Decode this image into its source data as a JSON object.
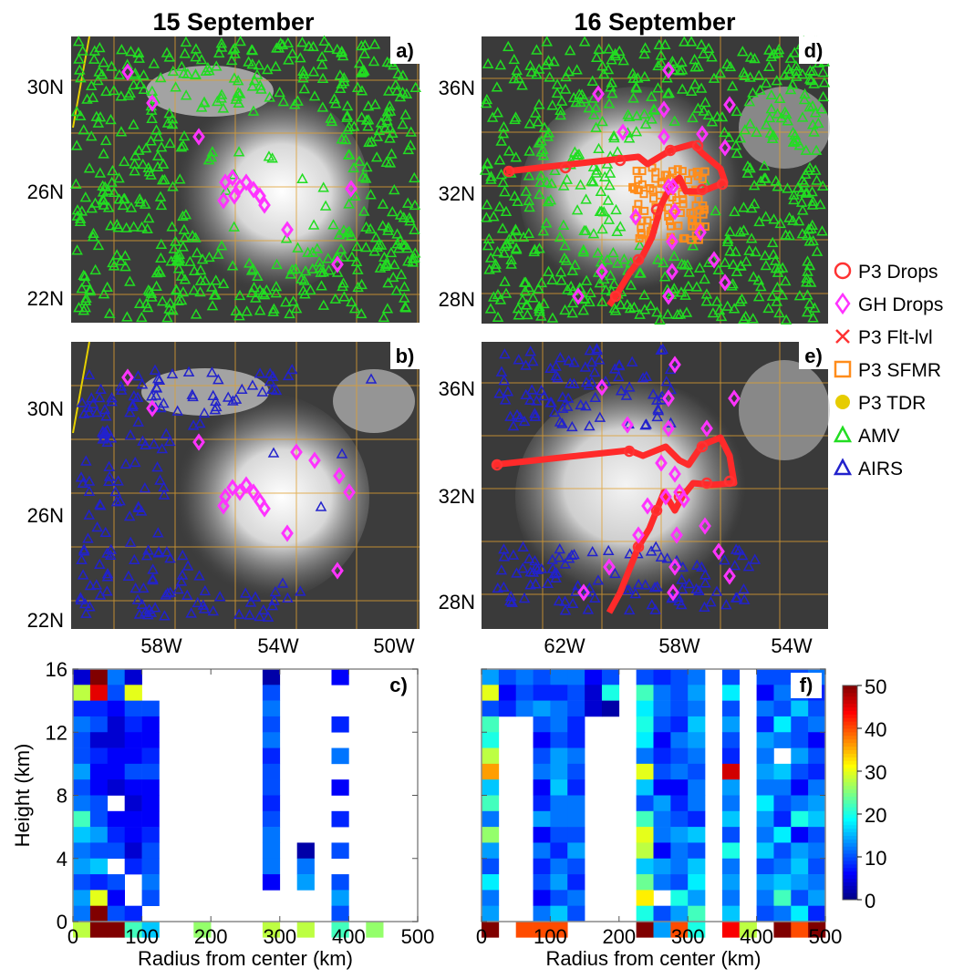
{
  "columns": [
    {
      "id": "col-left",
      "title": "15 September"
    },
    {
      "id": "col-right",
      "title": "16 September"
    }
  ],
  "legend": [
    {
      "id": "p3-drops",
      "label": "P3 Drops",
      "marker": "circle-open",
      "color": "#ff3333"
    },
    {
      "id": "gh-drops",
      "label": "GH Drops",
      "marker": "diamond-open",
      "color": "#ff33ff"
    },
    {
      "id": "p3-flt-lvl",
      "label": "P3 Flt-lvl",
      "marker": "cross",
      "color": "#ff3333"
    },
    {
      "id": "p3-sfmr",
      "label": "P3 SFMR",
      "marker": "square-open",
      "color": "#ff8c1a"
    },
    {
      "id": "p3-tdr",
      "label": "P3 TDR",
      "marker": "circle-filled",
      "color": "#e6cc00"
    },
    {
      "id": "amv",
      "label": "AMV",
      "marker": "triangle-open",
      "color": "#22dd22"
    },
    {
      "id": "airs",
      "label": "AIRS",
      "marker": "triangle-open",
      "color": "#2222cc"
    }
  ],
  "maps": [
    {
      "panel": "a)",
      "lat_ticks": [
        "30N",
        "26N",
        "22N"
      ],
      "lon_ticks": [],
      "observations": [
        "AMV",
        "GH Drops"
      ]
    },
    {
      "panel": "b)",
      "lat_ticks": [
        "30N",
        "26N",
        "22N"
      ],
      "lon_ticks": [
        "58W",
        "54W",
        "50W"
      ],
      "observations": [
        "AIRS",
        "GH Drops"
      ]
    },
    {
      "panel": "d)",
      "lat_ticks": [
        "36N",
        "32N",
        "28N"
      ],
      "lon_ticks": [],
      "observations": [
        "AMV",
        "GH Drops",
        "P3 Drops",
        "P3 Flt-lvl",
        "P3 SFMR"
      ]
    },
    {
      "panel": "e)",
      "lat_ticks": [
        "36N",
        "32N",
        "28N"
      ],
      "lon_ticks": [
        "62W",
        "58W",
        "54W"
      ],
      "observations": [
        "AIRS",
        "GH Drops",
        "P3 Drops",
        "P3 Flt-lvl"
      ]
    }
  ],
  "chart_data": [
    {
      "type": "heatmap",
      "panel": "c)",
      "xlabel": "Radius from center (km)",
      "ylabel": "Height (km)",
      "xlim": [
        0,
        500
      ],
      "ylim": [
        0,
        16
      ],
      "xticks": [
        "0",
        "100",
        "200",
        "300",
        "400",
        "500"
      ],
      "yticks": [
        "0",
        "4",
        "8",
        "12",
        "16"
      ],
      "x_bin_km": 25,
      "y_bin_km": 1,
      "rows_top_to_bottom": [
        [
          4,
          50,
          12,
          4,
          null,
          null,
          null,
          null,
          null,
          null,
          null,
          2,
          null,
          null,
          null,
          6,
          null,
          null,
          null,
          null
        ],
        [
          28,
          45,
          10,
          30,
          null,
          null,
          null,
          null,
          null,
          null,
          null,
          10,
          null,
          null,
          null,
          null,
          null,
          null,
          null,
          null
        ],
        [
          8,
          8,
          6,
          10,
          10,
          null,
          null,
          null,
          null,
          null,
          null,
          12,
          null,
          null,
          null,
          null,
          null,
          null,
          null,
          null
        ],
        [
          12,
          10,
          4,
          8,
          6,
          null,
          null,
          null,
          null,
          null,
          null,
          10,
          null,
          null,
          null,
          8,
          null,
          null,
          null,
          null
        ],
        [
          10,
          4,
          4,
          6,
          6,
          null,
          null,
          null,
          null,
          null,
          null,
          12,
          null,
          null,
          null,
          null,
          null,
          null,
          null,
          null
        ],
        [
          10,
          8,
          6,
          6,
          8,
          null,
          null,
          null,
          null,
          null,
          null,
          8,
          null,
          null,
          null,
          12,
          null,
          null,
          null,
          null
        ],
        [
          14,
          6,
          6,
          10,
          10,
          null,
          null,
          null,
          null,
          null,
          null,
          10,
          null,
          null,
          null,
          null,
          null,
          null,
          null,
          null
        ],
        [
          10,
          6,
          4,
          6,
          6,
          null,
          null,
          null,
          null,
          null,
          null,
          10,
          null,
          null,
          null,
          6,
          null,
          null,
          null,
          null
        ],
        [
          12,
          10,
          null,
          4,
          6,
          null,
          null,
          null,
          null,
          null,
          null,
          8,
          null,
          null,
          null,
          null,
          null,
          null,
          null,
          null
        ],
        [
          22,
          10,
          6,
          6,
          6,
          null,
          null,
          null,
          null,
          null,
          null,
          10,
          null,
          null,
          null,
          8,
          null,
          null,
          null,
          null
        ],
        [
          16,
          14,
          8,
          6,
          8,
          null,
          null,
          null,
          null,
          null,
          null,
          12,
          null,
          null,
          null,
          null,
          null,
          null,
          null,
          null
        ],
        [
          12,
          10,
          10,
          4,
          10,
          null,
          null,
          null,
          null,
          null,
          null,
          12,
          null,
          2,
          null,
          10,
          null,
          null,
          null,
          null
        ],
        [
          14,
          16,
          null,
          8,
          10,
          null,
          null,
          null,
          null,
          null,
          null,
          12,
          null,
          12,
          null,
          null,
          null,
          null,
          null,
          null
        ],
        [
          10,
          8,
          10,
          null,
          12,
          null,
          null,
          null,
          null,
          null,
          null,
          6,
          null,
          14,
          null,
          10,
          null,
          null,
          null,
          null
        ],
        [
          14,
          30,
          6,
          null,
          10,
          null,
          null,
          null,
          null,
          null,
          null,
          null,
          null,
          null,
          null,
          14,
          null,
          null,
          null,
          null
        ],
        [
          12,
          50,
          10,
          8,
          null,
          null,
          null,
          null,
          null,
          null,
          null,
          null,
          null,
          null,
          null,
          10,
          null,
          null,
          null,
          null
        ],
        [
          28,
          54,
          54,
          22,
          16,
          null,
          null,
          26,
          null,
          null,
          null,
          28,
          null,
          28,
          null,
          22,
          null,
          26,
          null,
          null
        ]
      ]
    },
    {
      "type": "heatmap",
      "panel": "f)",
      "xlabel": "Radius from center (km)",
      "ylabel": "",
      "xlim": [
        0,
        500
      ],
      "ylim": [
        0,
        16
      ],
      "xticks": [
        "0",
        "100",
        "200",
        "300",
        "400",
        "500"
      ],
      "yticks": [],
      "x_bin_km": 25,
      "y_bin_km": 1,
      "colorbar": {
        "min": 0,
        "max": 50,
        "ticks": [
          "0",
          "10",
          "20",
          "30",
          "40",
          "50"
        ]
      },
      "rows_top_to_bottom": [
        [
          14,
          10,
          12,
          10,
          12,
          12,
          6,
          10,
          null,
          10,
          8,
          10,
          12,
          null,
          10,
          null,
          10,
          10,
          10,
          12
        ],
        [
          30,
          6,
          10,
          8,
          8,
          10,
          4,
          20,
          null,
          22,
          12,
          10,
          14,
          null,
          18,
          null,
          6,
          12,
          10,
          8
        ],
        [
          10,
          8,
          12,
          14,
          12,
          10,
          4,
          2,
          null,
          18,
          12,
          10,
          12,
          null,
          10,
          null,
          12,
          10,
          16,
          10
        ],
        [
          22,
          null,
          null,
          10,
          12,
          8,
          null,
          null,
          null,
          20,
          10,
          8,
          16,
          null,
          14,
          null,
          8,
          18,
          10,
          12
        ],
        [
          20,
          null,
          null,
          6,
          10,
          8,
          null,
          null,
          null,
          18,
          6,
          12,
          14,
          null,
          10,
          null,
          14,
          12,
          10,
          6
        ],
        [
          28,
          null,
          null,
          10,
          14,
          12,
          null,
          null,
          null,
          12,
          8,
          10,
          12,
          null,
          8,
          null,
          12,
          null,
          14,
          10
        ],
        [
          36,
          null,
          null,
          12,
          14,
          10,
          null,
          null,
          null,
          30,
          10,
          12,
          10,
          null,
          46,
          null,
          14,
          16,
          10,
          8
        ],
        [
          16,
          null,
          null,
          6,
          16,
          8,
          null,
          null,
          null,
          16,
          6,
          6,
          12,
          null,
          14,
          null,
          12,
          12,
          6,
          12
        ],
        [
          22,
          null,
          null,
          8,
          12,
          12,
          null,
          null,
          null,
          10,
          14,
          8,
          12,
          null,
          12,
          null,
          18,
          10,
          12,
          14
        ],
        [
          12,
          null,
          null,
          14,
          12,
          12,
          null,
          null,
          null,
          22,
          12,
          10,
          8,
          null,
          16,
          null,
          14,
          8,
          20,
          16
        ],
        [
          26,
          null,
          null,
          6,
          10,
          10,
          null,
          null,
          null,
          30,
          12,
          14,
          16,
          null,
          10,
          null,
          12,
          18,
          6,
          10
        ],
        [
          14,
          null,
          null,
          12,
          8,
          14,
          null,
          null,
          null,
          28,
          6,
          12,
          10,
          null,
          20,
          null,
          16,
          10,
          14,
          12
        ],
        [
          10,
          null,
          null,
          8,
          12,
          10,
          null,
          null,
          null,
          16,
          14,
          12,
          16,
          null,
          12,
          null,
          10,
          12,
          16,
          10
        ],
        [
          18,
          null,
          null,
          10,
          14,
          8,
          null,
          null,
          null,
          24,
          12,
          10,
          18,
          null,
          14,
          null,
          14,
          16,
          14,
          12
        ],
        [
          12,
          null,
          null,
          6,
          10,
          12,
          null,
          null,
          null,
          32,
          null,
          20,
          14,
          null,
          12,
          null,
          12,
          22,
          10,
          14
        ],
        [
          14,
          null,
          null,
          12,
          16,
          10,
          null,
          null,
          null,
          20,
          10,
          14,
          22,
          null,
          16,
          null,
          10,
          12,
          18,
          8
        ],
        [
          54,
          null,
          40,
          40,
          40,
          null,
          null,
          null,
          null,
          54,
          14,
          40,
          20,
          null,
          44,
          28,
          null,
          52,
          40,
          50
        ]
      ]
    }
  ]
}
